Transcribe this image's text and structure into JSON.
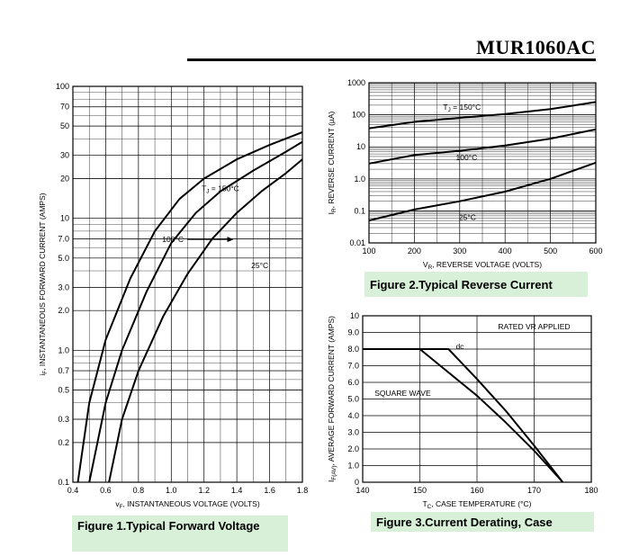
{
  "header": {
    "part_number": "MUR1060AC"
  },
  "colors": {
    "caption_bg": "#d7f0d7",
    "line": "#000000",
    "grid": "#000000"
  },
  "chart_data": [
    {
      "id": "fig1",
      "type": "line",
      "title": "Figure 1.Typical  Forward  Voltage",
      "xlabel": "vF, INSTANTANEOUS VOLTAGE (VOLTS)",
      "xlabel_sub": "F",
      "ylabel": "iF, INSTANTANEOUS FORWARD CURRENT (AMPS)",
      "xscale": "linear",
      "yscale": "log",
      "xlim": [
        0.4,
        1.8
      ],
      "ylim": [
        0.1,
        100
      ],
      "x_ticks": [
        0.4,
        0.6,
        0.8,
        1.0,
        1.2,
        1.4,
        1.6,
        1.8
      ],
      "x_tick_labels": [
        "0.4",
        "0.6",
        "0.8",
        "1.0",
        "1.2",
        "1.4",
        "1.6",
        "1.8"
      ],
      "y_ticks": [
        0.1,
        0.2,
        0.3,
        0.5,
        0.7,
        1.0,
        2.0,
        3.0,
        5.0,
        7.0,
        10,
        20,
        30,
        50,
        70,
        100
      ],
      "y_tick_labels": [
        "0.1",
        "0.2",
        "0.3",
        "0.5",
        "0.7",
        "1.0",
        "2.0",
        "3.0",
        "5.0",
        "7.0",
        "10",
        "20",
        "30",
        "50",
        "70",
        "100"
      ],
      "series": [
        {
          "name": "TJ = 150°C",
          "x": [
            0.43,
            0.5,
            0.6,
            0.75,
            0.9,
            1.05,
            1.2,
            1.4,
            1.6,
            1.8
          ],
          "y": [
            0.1,
            0.4,
            1.2,
            3.5,
            8,
            14,
            20,
            28,
            36,
            45
          ]
        },
        {
          "name": "100°C",
          "x": [
            0.5,
            0.6,
            0.7,
            0.85,
            1.0,
            1.15,
            1.3,
            1.5,
            1.7,
            1.8
          ],
          "y": [
            0.1,
            0.4,
            1.0,
            2.8,
            6.5,
            11,
            16,
            23,
            32,
            38
          ]
        },
        {
          "name": "25°C",
          "x": [
            0.62,
            0.7,
            0.8,
            0.95,
            1.1,
            1.25,
            1.4,
            1.55,
            1.7,
            1.8
          ],
          "y": [
            0.1,
            0.3,
            0.7,
            1.8,
            3.8,
            7,
            11,
            16,
            22,
            28
          ]
        }
      ],
      "annotations": [
        {
          "text": "TJ = 150°C",
          "main": "T",
          "sub": "J",
          "rest": " = 150°C",
          "x": 1.3,
          "y": 16
        },
        {
          "text": "100°C",
          "x": 1.01,
          "y": 6.6,
          "arrow_to": [
            1.38,
            6.6
          ]
        },
        {
          "text": "25°C",
          "x": 1.54,
          "y": 4.2
        }
      ]
    },
    {
      "id": "fig2",
      "type": "line",
      "title": "Figure 2.Typical  Reverse  Current",
      "xlabel": "VR, REVERSE VOLTAGE (VOLTS)",
      "ylabel": "IR, REVERSE CURRENT (µA)",
      "xscale": "linear",
      "yscale": "log",
      "xlim": [
        100,
        600
      ],
      "ylim": [
        0.01,
        1000
      ],
      "x_ticks": [
        100,
        200,
        300,
        400,
        500,
        600
      ],
      "x_tick_labels": [
        "100",
        "200",
        "300",
        "400",
        "500",
        "600"
      ],
      "y_ticks": [
        0.01,
        0.1,
        1.0,
        10,
        100,
        1000
      ],
      "y_tick_labels": [
        "0.01",
        "0.1",
        "1.0",
        "10",
        "100",
        "1000"
      ],
      "series": [
        {
          "name": "TJ = 150°C",
          "x": [
            100,
            200,
            300,
            400,
            500,
            600
          ],
          "y": [
            38,
            60,
            80,
            105,
            150,
            250
          ]
        },
        {
          "name": "100°C",
          "x": [
            100,
            200,
            300,
            400,
            500,
            600
          ],
          "y": [
            3,
            5.5,
            7.5,
            11,
            18,
            35
          ]
        },
        {
          "name": "25°C",
          "x": [
            100,
            200,
            300,
            400,
            500,
            600
          ],
          "y": [
            0.05,
            0.11,
            0.2,
            0.4,
            1.0,
            3.2
          ]
        }
      ],
      "annotations": [
        {
          "text": "TJ = 150°C",
          "main": "T",
          "sub": "J",
          "rest": " = 150°C",
          "x": 305,
          "y": 145
        },
        {
          "text": "100°C",
          "x": 315,
          "y": 3.9
        },
        {
          "text": "25°C",
          "x": 317,
          "y": 0.052
        }
      ]
    },
    {
      "id": "fig3",
      "type": "line",
      "title": "Figure 3.Current  Derating,  Case",
      "xlabel": "TC, CASE TEMPERATURE (°C)",
      "ylabel": "IF(AV), AVERAGE FORWARD CURRENT (AMPS)",
      "xscale": "linear",
      "yscale": "linear",
      "xlim": [
        140,
        180
      ],
      "ylim": [
        0,
        10
      ],
      "x_ticks": [
        140,
        150,
        160,
        170,
        180
      ],
      "x_tick_labels": [
        "140",
        "150",
        "160",
        "170",
        "180"
      ],
      "y_ticks": [
        0,
        1,
        2,
        3,
        4,
        5,
        6,
        7,
        8,
        9,
        10
      ],
      "y_tick_labels": [
        "0",
        "1.0",
        "2.0",
        "3.0",
        "4.0",
        "5.0",
        "6.0",
        "7.0",
        "8.0",
        "9.0",
        "10"
      ],
      "series": [
        {
          "name": "dc",
          "x": [
            140,
            155,
            160,
            165,
            170,
            175
          ],
          "y": [
            8,
            8,
            6.2,
            4.3,
            2.2,
            0
          ]
        },
        {
          "name": "SQUARE WAVE",
          "x": [
            150,
            160,
            165,
            170,
            175
          ],
          "y": [
            8,
            5.2,
            3.6,
            1.9,
            0
          ]
        }
      ],
      "annotations": [
        {
          "text": "RATED VR APPLIED",
          "x": 170,
          "y": 9.2
        },
        {
          "text": "dc",
          "x": 157,
          "y": 8
        },
        {
          "text": "SQUARE WAVE",
          "x": 147,
          "y": 5.2
        }
      ]
    }
  ]
}
